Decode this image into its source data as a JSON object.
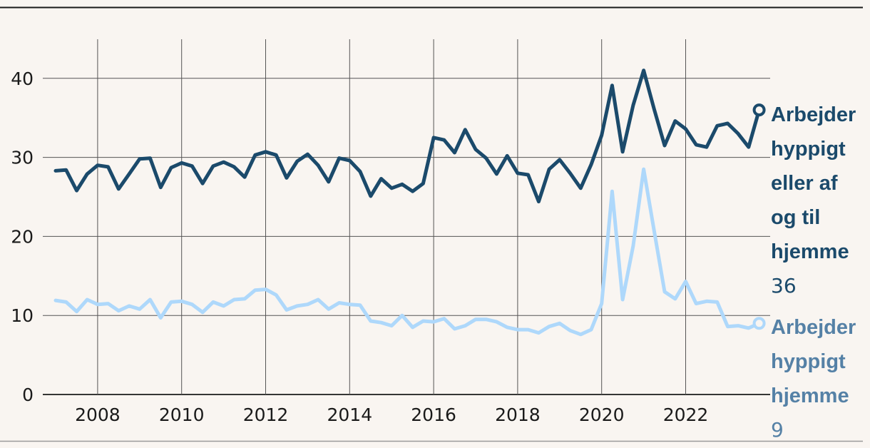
{
  "chart_data": {
    "type": "line",
    "ylim": [
      0,
      45
    ],
    "xlim": [
      2007.0,
      2024.0
    ],
    "yticks": [
      0,
      10,
      20,
      30,
      40
    ],
    "xticks": [
      2008,
      2010,
      2012,
      2014,
      2016,
      2018,
      2020,
      2022
    ],
    "grid": true,
    "series": [
      {
        "name": "Arbejder hyppigt eller af og til hjemme",
        "label_lines": [
          "Arbejder",
          "hyppigt",
          "eller af",
          "og til",
          "hjemme"
        ],
        "end_value": "36",
        "color": "#1b4a6b",
        "values": [
          [
            2007.0,
            28.3
          ],
          [
            2007.25,
            28.4
          ],
          [
            2007.5,
            25.8
          ],
          [
            2007.75,
            27.9
          ],
          [
            2008.0,
            29.0
          ],
          [
            2008.25,
            28.8
          ],
          [
            2008.5,
            26.0
          ],
          [
            2008.75,
            27.9
          ],
          [
            2009.0,
            29.8
          ],
          [
            2009.25,
            29.9
          ],
          [
            2009.5,
            26.2
          ],
          [
            2009.75,
            28.7
          ],
          [
            2010.0,
            29.3
          ],
          [
            2010.25,
            28.9
          ],
          [
            2010.5,
            26.7
          ],
          [
            2010.75,
            28.9
          ],
          [
            2011.0,
            29.4
          ],
          [
            2011.25,
            28.8
          ],
          [
            2011.5,
            27.5
          ],
          [
            2011.75,
            30.3
          ],
          [
            2012.0,
            30.7
          ],
          [
            2012.25,
            30.3
          ],
          [
            2012.5,
            27.4
          ],
          [
            2012.75,
            29.5
          ],
          [
            2013.0,
            30.4
          ],
          [
            2013.25,
            29.0
          ],
          [
            2013.5,
            26.9
          ],
          [
            2013.75,
            29.9
          ],
          [
            2014.0,
            29.6
          ],
          [
            2014.25,
            28.2
          ],
          [
            2014.5,
            25.1
          ],
          [
            2014.75,
            27.3
          ],
          [
            2015.0,
            26.1
          ],
          [
            2015.25,
            26.6
          ],
          [
            2015.5,
            25.7
          ],
          [
            2015.75,
            26.7
          ],
          [
            2016.0,
            32.5
          ],
          [
            2016.25,
            32.2
          ],
          [
            2016.5,
            30.6
          ],
          [
            2016.75,
            33.5
          ],
          [
            2017.0,
            31.0
          ],
          [
            2017.25,
            29.9
          ],
          [
            2017.5,
            27.9
          ],
          [
            2017.75,
            30.2
          ],
          [
            2018.0,
            28.0
          ],
          [
            2018.25,
            27.8
          ],
          [
            2018.5,
            24.4
          ],
          [
            2018.75,
            28.5
          ],
          [
            2019.0,
            29.7
          ],
          [
            2019.25,
            28.0
          ],
          [
            2019.5,
            26.1
          ],
          [
            2019.75,
            29.1
          ],
          [
            2020.0,
            32.8
          ],
          [
            2020.25,
            39.1
          ],
          [
            2020.5,
            30.7
          ],
          [
            2020.75,
            36.6
          ],
          [
            2021.0,
            41.0
          ],
          [
            2021.25,
            36.1
          ],
          [
            2021.5,
            31.5
          ],
          [
            2021.75,
            34.6
          ],
          [
            2022.0,
            33.6
          ],
          [
            2022.25,
            31.6
          ],
          [
            2022.5,
            31.3
          ],
          [
            2022.75,
            34.0
          ],
          [
            2023.0,
            34.3
          ],
          [
            2023.25,
            33.0
          ],
          [
            2023.5,
            31.3
          ],
          [
            2023.75,
            36.0
          ]
        ]
      },
      {
        "name": "Arbejder hyppigt hjemme",
        "label_lines": [
          "Arbejder",
          "hyppigt",
          "hjemme"
        ],
        "end_value": "9",
        "color": "#aed8fb",
        "label_color": "#5581a6",
        "values": [
          [
            2007.0,
            11.9
          ],
          [
            2007.25,
            11.7
          ],
          [
            2007.5,
            10.5
          ],
          [
            2007.75,
            12.0
          ],
          [
            2008.0,
            11.4
          ],
          [
            2008.25,
            11.5
          ],
          [
            2008.5,
            10.6
          ],
          [
            2008.75,
            11.2
          ],
          [
            2009.0,
            10.8
          ],
          [
            2009.25,
            12.0
          ],
          [
            2009.5,
            9.7
          ],
          [
            2009.75,
            11.7
          ],
          [
            2010.0,
            11.8
          ],
          [
            2010.25,
            11.4
          ],
          [
            2010.5,
            10.4
          ],
          [
            2010.75,
            11.7
          ],
          [
            2011.0,
            11.2
          ],
          [
            2011.25,
            12.0
          ],
          [
            2011.5,
            12.1
          ],
          [
            2011.75,
            13.2
          ],
          [
            2012.0,
            13.3
          ],
          [
            2012.25,
            12.6
          ],
          [
            2012.5,
            10.7
          ],
          [
            2012.75,
            11.2
          ],
          [
            2013.0,
            11.4
          ],
          [
            2013.25,
            12.0
          ],
          [
            2013.5,
            10.8
          ],
          [
            2013.75,
            11.6
          ],
          [
            2014.0,
            11.4
          ],
          [
            2014.25,
            11.3
          ],
          [
            2014.5,
            9.3
          ],
          [
            2014.75,
            9.1
          ],
          [
            2015.0,
            8.7
          ],
          [
            2015.25,
            10.0
          ],
          [
            2015.5,
            8.5
          ],
          [
            2015.75,
            9.3
          ],
          [
            2016.0,
            9.2
          ],
          [
            2016.25,
            9.6
          ],
          [
            2016.5,
            8.3
          ],
          [
            2016.75,
            8.7
          ],
          [
            2017.0,
            9.5
          ],
          [
            2017.25,
            9.5
          ],
          [
            2017.5,
            9.2
          ],
          [
            2017.75,
            8.5
          ],
          [
            2018.0,
            8.2
          ],
          [
            2018.25,
            8.2
          ],
          [
            2018.5,
            7.8
          ],
          [
            2018.75,
            8.6
          ],
          [
            2019.0,
            9.0
          ],
          [
            2019.25,
            8.1
          ],
          [
            2019.5,
            7.6
          ],
          [
            2019.75,
            8.2
          ],
          [
            2020.0,
            11.5
          ],
          [
            2020.25,
            25.7
          ],
          [
            2020.5,
            12.0
          ],
          [
            2020.75,
            18.8
          ],
          [
            2021.0,
            28.5
          ],
          [
            2021.25,
            20.7
          ],
          [
            2021.5,
            13.0
          ],
          [
            2021.75,
            12.1
          ],
          [
            2022.0,
            14.3
          ],
          [
            2022.25,
            11.5
          ],
          [
            2022.5,
            11.8
          ],
          [
            2022.75,
            11.7
          ],
          [
            2023.0,
            8.6
          ],
          [
            2023.25,
            8.7
          ],
          [
            2023.5,
            8.4
          ],
          [
            2023.75,
            9.0
          ]
        ]
      }
    ]
  }
}
